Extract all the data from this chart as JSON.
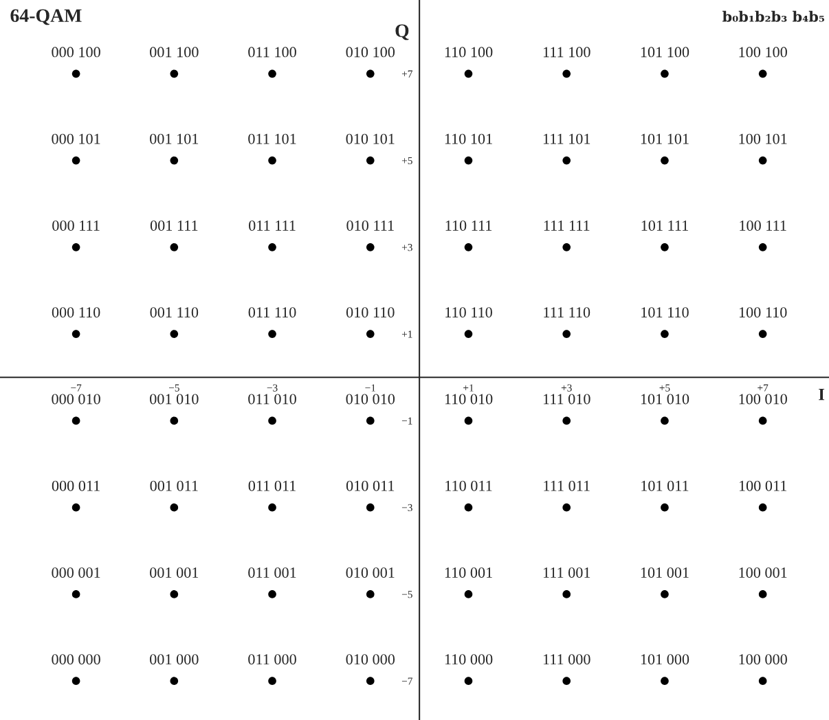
{
  "chart_data": {
    "type": "scatter",
    "title": "64-QAM",
    "xlabel": "I",
    "ylabel": "Q",
    "xlim": [
      -8.55,
      8.35
    ],
    "ylim": [
      -7.9,
      8.7
    ],
    "xticks": [
      {
        "value": -7,
        "label": "−7"
      },
      {
        "value": -5,
        "label": "−5"
      },
      {
        "value": -3,
        "label": "−3"
      },
      {
        "value": -1,
        "label": "−1"
      },
      {
        "value": 1,
        "label": "+1"
      },
      {
        "value": 3,
        "label": "+3"
      },
      {
        "value": 5,
        "label": "+5"
      },
      {
        "value": 7,
        "label": "+7"
      }
    ],
    "yticks": [
      {
        "value": -7,
        "label": "−7"
      },
      {
        "value": -5,
        "label": "−5"
      },
      {
        "value": -3,
        "label": "−3"
      },
      {
        "value": -1,
        "label": "−1"
      },
      {
        "value": 1,
        "label": "+1"
      },
      {
        "value": 3,
        "label": "+3"
      },
      {
        "value": 5,
        "label": "+5"
      },
      {
        "value": 7,
        "label": "+7"
      }
    ],
    "marker": "circle",
    "series": [
      {
        "color": "#000000",
        "x": [
          -7,
          -5,
          -3,
          -1,
          1,
          3,
          5,
          7,
          -7,
          -5,
          -3,
          -1,
          1,
          3,
          5,
          7,
          -7,
          -5,
          -3,
          -1,
          1,
          3,
          5,
          7,
          -7,
          -5,
          -3,
          -1,
          1,
          3,
          5,
          7,
          -7,
          -5,
          -3,
          -1,
          1,
          3,
          5,
          7,
          -7,
          -5,
          -3,
          -1,
          1,
          3,
          5,
          7,
          -7,
          -5,
          -3,
          -1,
          1,
          3,
          5,
          7,
          -7,
          -5,
          -3,
          -1,
          1,
          3,
          5,
          7
        ],
        "values": [
          7,
          7,
          7,
          7,
          7,
          7,
          7,
          7,
          5,
          5,
          5,
          5,
          5,
          5,
          5,
          5,
          3,
          3,
          3,
          3,
          3,
          3,
          3,
          3,
          1,
          1,
          1,
          1,
          1,
          1,
          1,
          1,
          -1,
          -1,
          -1,
          -1,
          -1,
          -1,
          -1,
          -1,
          -3,
          -3,
          -3,
          -3,
          -3,
          -3,
          -3,
          -3,
          -5,
          -5,
          -5,
          -5,
          -5,
          -5,
          -5,
          -5,
          -7,
          -7,
          -7,
          -7,
          -7,
          -7,
          -7,
          -7
        ]
      }
    ],
    "annotations": [
      "b₀b₁b₂b₃ b₄b₅",
      {
        "text": "000 100",
        "x": -7,
        "y": 7
      },
      {
        "text": "001 100",
        "x": -5,
        "y": 7
      },
      {
        "text": "011 100",
        "x": -3,
        "y": 7
      },
      {
        "text": "010 100",
        "x": -1,
        "y": 7
      },
      {
        "text": "110 100",
        "x": 1,
        "y": 7
      },
      {
        "text": "111 100",
        "x": 3,
        "y": 7
      },
      {
        "text": "101 100",
        "x": 5,
        "y": 7
      },
      {
        "text": "100 100",
        "x": 7,
        "y": 7
      },
      {
        "text": "000 101",
        "x": -7,
        "y": 5
      },
      {
        "text": "001 101",
        "x": -5,
        "y": 5
      },
      {
        "text": "011 101",
        "x": -3,
        "y": 5
      },
      {
        "text": "010 101",
        "x": -1,
        "y": 5
      },
      {
        "text": "110 101",
        "x": 1,
        "y": 5
      },
      {
        "text": "111 101",
        "x": 3,
        "y": 5
      },
      {
        "text": "101 101",
        "x": 5,
        "y": 5
      },
      {
        "text": "100 101",
        "x": 7,
        "y": 5
      },
      {
        "text": "000 111",
        "x": -7,
        "y": 3
      },
      {
        "text": "001 111",
        "x": -5,
        "y": 3
      },
      {
        "text": "011 111",
        "x": -3,
        "y": 3
      },
      {
        "text": "010 111",
        "x": -1,
        "y": 3
      },
      {
        "text": "110 111",
        "x": 1,
        "y": 3
      },
      {
        "text": "111 111",
        "x": 3,
        "y": 3
      },
      {
        "text": "101 111",
        "x": 5,
        "y": 3
      },
      {
        "text": "100 111",
        "x": 7,
        "y": 3
      },
      {
        "text": "000 110",
        "x": -7,
        "y": 1
      },
      {
        "text": "001 110",
        "x": -5,
        "y": 1
      },
      {
        "text": "011 110",
        "x": -3,
        "y": 1
      },
      {
        "text": "010 110",
        "x": -1,
        "y": 1
      },
      {
        "text": "110 110",
        "x": 1,
        "y": 1
      },
      {
        "text": "111 110",
        "x": 3,
        "y": 1
      },
      {
        "text": "101 110",
        "x": 5,
        "y": 1
      },
      {
        "text": "100 110",
        "x": 7,
        "y": 1
      },
      {
        "text": "000 010",
        "x": -7,
        "y": -1
      },
      {
        "text": "001 010",
        "x": -5,
        "y": -1
      },
      {
        "text": "011 010",
        "x": -3,
        "y": -1
      },
      {
        "text": "010 010",
        "x": -1,
        "y": -1
      },
      {
        "text": "110 010",
        "x": 1,
        "y": -1
      },
      {
        "text": "111 010",
        "x": 3,
        "y": -1
      },
      {
        "text": "101 010",
        "x": 5,
        "y": -1
      },
      {
        "text": "100 010",
        "x": 7,
        "y": -1
      },
      {
        "text": "000 011",
        "x": -7,
        "y": -3
      },
      {
        "text": "001 011",
        "x": -5,
        "y": -3
      },
      {
        "text": "011 011",
        "x": -3,
        "y": -3
      },
      {
        "text": "010 011",
        "x": -1,
        "y": -3
      },
      {
        "text": "110 011",
        "x": 1,
        "y": -3
      },
      {
        "text": "111 011",
        "x": 3,
        "y": -3
      },
      {
        "text": "101 011",
        "x": 5,
        "y": -3
      },
      {
        "text": "100 011",
        "x": 7,
        "y": -3
      },
      {
        "text": "000 001",
        "x": -7,
        "y": -5
      },
      {
        "text": "001 001",
        "x": -5,
        "y": -5
      },
      {
        "text": "011 001",
        "x": -3,
        "y": -5
      },
      {
        "text": "010 001",
        "x": -1,
        "y": -5
      },
      {
        "text": "110 001",
        "x": 1,
        "y": -5
      },
      {
        "text": "111 001",
        "x": 3,
        "y": -5
      },
      {
        "text": "101 001",
        "x": 5,
        "y": -5
      },
      {
        "text": "100 001",
        "x": 7,
        "y": -5
      },
      {
        "text": "000 000",
        "x": -7,
        "y": -7
      },
      {
        "text": "001 000",
        "x": -5,
        "y": -7
      },
      {
        "text": "011 000",
        "x": -3,
        "y": -7
      },
      {
        "text": "010 000",
        "x": -1,
        "y": -7
      },
      {
        "text": "110 000",
        "x": 1,
        "y": -7
      },
      {
        "text": "111 000",
        "x": 3,
        "y": -7
      },
      {
        "text": "101 000",
        "x": 5,
        "y": -7
      },
      {
        "text": "100 000",
        "x": 7,
        "y": -7
      }
    ]
  }
}
